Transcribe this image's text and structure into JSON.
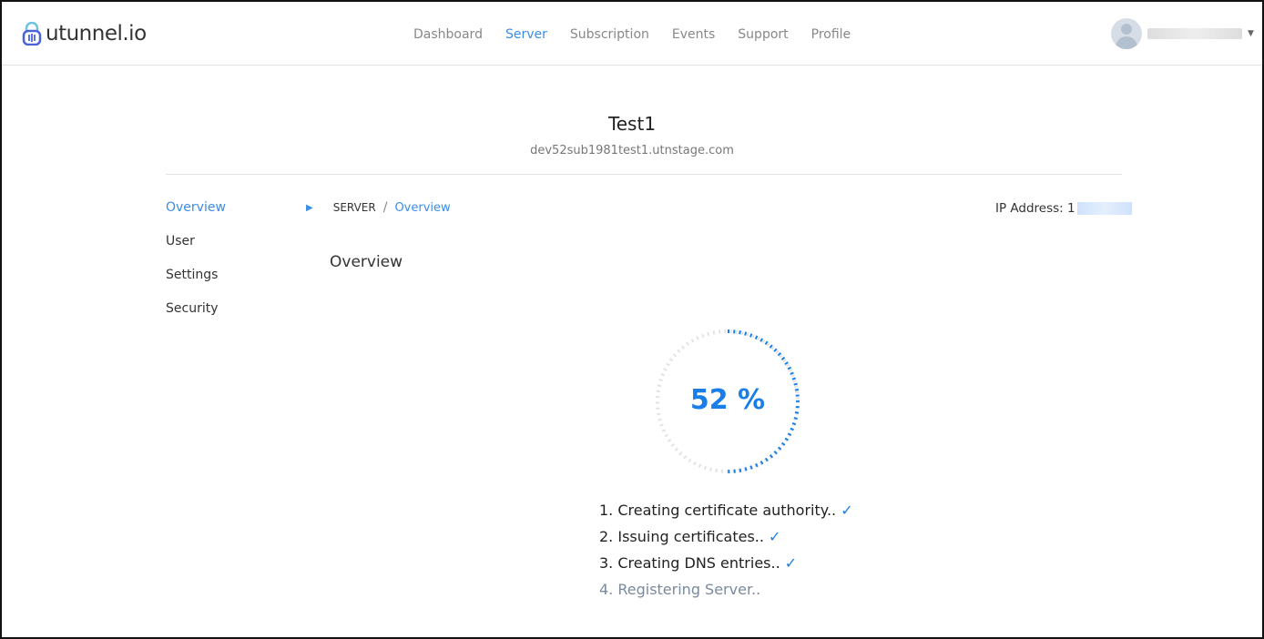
{
  "header": {
    "logo": "utunnel.io",
    "nav": [
      {
        "label": "Dashboard"
      },
      {
        "label": "Server",
        "active": true
      },
      {
        "label": "Subscription"
      },
      {
        "label": "Events"
      },
      {
        "label": "Support"
      },
      {
        "label": "Profile"
      }
    ]
  },
  "server": {
    "name": "Test1",
    "hostname": "dev52sub1981test1.utnstage.com"
  },
  "sidebar": {
    "items": [
      {
        "label": "Overview",
        "active": true
      },
      {
        "label": "User"
      },
      {
        "label": "Settings"
      },
      {
        "label": "Security"
      }
    ]
  },
  "breadcrumb": {
    "root": "SERVER",
    "sep": "/",
    "current": "Overview"
  },
  "ip": {
    "label": "IP Address: 1"
  },
  "section_title": "Overview",
  "progress": {
    "percent": 52,
    "label": "52 %",
    "color": "#1a7ee8"
  },
  "steps": [
    {
      "text": "1. Creating certificate authority..",
      "done": true
    },
    {
      "text": "2. Issuing certificates..",
      "done": true
    },
    {
      "text": "3. Creating DNS entries..",
      "done": true
    },
    {
      "text": "4. Registering Server..",
      "done": false
    }
  ],
  "check": "✓"
}
